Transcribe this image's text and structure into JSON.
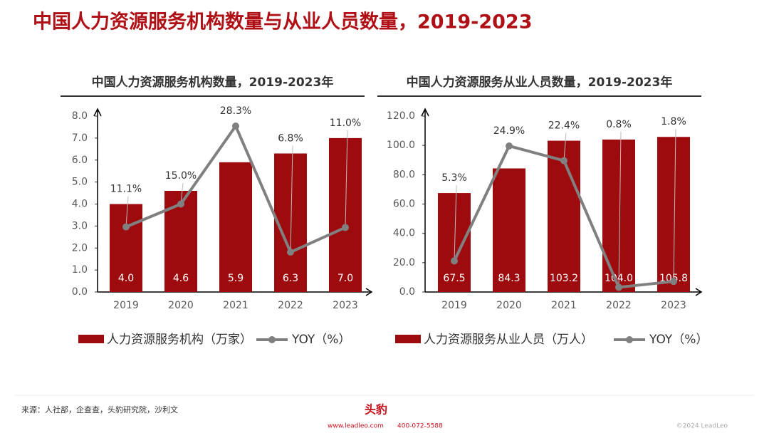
{
  "title": "中国人力资源服务机构数量与从业人员数量，2019-2023",
  "source": "来源：人社部，企查查，头豹研究院，沙利文",
  "footer": {
    "logo": "头豹",
    "website": "www.leadleo.com",
    "phone": "400-072-5588",
    "copyright": "©2024 LeadLeo"
  },
  "chart_data": [
    {
      "type": "bar",
      "title": "中国人力资源服务机构数量，2019-2023年",
      "categories": [
        "2019",
        "2020",
        "2021",
        "2022",
        "2023"
      ],
      "series": [
        {
          "name": "人力资源服务机构（万家）",
          "color": "#9e0b0f",
          "type": "bar",
          "values": [
            4.0,
            4.6,
            5.9,
            6.3,
            7.0
          ],
          "value_labels": [
            "4.0",
            "4.6",
            "5.9",
            "6.3",
            "7.0"
          ]
        },
        {
          "name": "YOY（%）",
          "color": "#808080",
          "type": "line",
          "axis": "y2",
          "values": [
            11.1,
            15.0,
            28.3,
            6.8,
            11.0
          ],
          "value_labels": [
            "11.1%",
            "15.0%",
            "28.3%",
            "6.8%",
            "11.0%"
          ]
        }
      ],
      "ylim": [
        0,
        8
      ],
      "yticks": [
        {
          "value": 0,
          "label": "0.0"
        },
        {
          "value": 1,
          "label": "1.0"
        },
        {
          "value": 2,
          "label": "2.0"
        },
        {
          "value": 3,
          "label": "3.0"
        },
        {
          "value": 4,
          "label": "4.0"
        },
        {
          "value": 5,
          "label": "5.0"
        },
        {
          "value": 6,
          "label": "6.0"
        },
        {
          "value": 7,
          "label": "7.0"
        },
        {
          "value": 8,
          "label": "8.0"
        }
      ],
      "y2lim": [
        0,
        30
      ]
    },
    {
      "type": "bar",
      "title": "中国人力资源服务从业人员数量，2019-2023年",
      "categories": [
        "2019",
        "2020",
        "2021",
        "2022",
        "2023"
      ],
      "series": [
        {
          "name": "人力资源服务从业人员（万人）",
          "color": "#9e0b0f",
          "type": "bar",
          "values": [
            67.5,
            84.3,
            103.2,
            104.0,
            105.8
          ],
          "value_labels": [
            "67.5",
            "84.3",
            "103.2",
            "104.0",
            "105.8"
          ]
        },
        {
          "name": "YOY（%）",
          "color": "#808080",
          "type": "line",
          "axis": "y2",
          "values": [
            5.3,
            24.9,
            22.4,
            0.8,
            1.8
          ],
          "value_labels": [
            "5.3%",
            "24.9%",
            "22.4%",
            "0.8%",
            "1.8%"
          ]
        }
      ],
      "ylim": [
        0,
        120
      ],
      "yticks": [
        {
          "value": 0,
          "label": "0.0"
        },
        {
          "value": 20,
          "label": "20.0"
        },
        {
          "value": 40,
          "label": "40.0"
        },
        {
          "value": 60,
          "label": "60.0"
        },
        {
          "value": 80,
          "label": "80.0"
        },
        {
          "value": 100,
          "label": "100.0"
        },
        {
          "value": 120,
          "label": "120.0"
        }
      ],
      "y2lim": [
        0,
        30
      ]
    }
  ]
}
